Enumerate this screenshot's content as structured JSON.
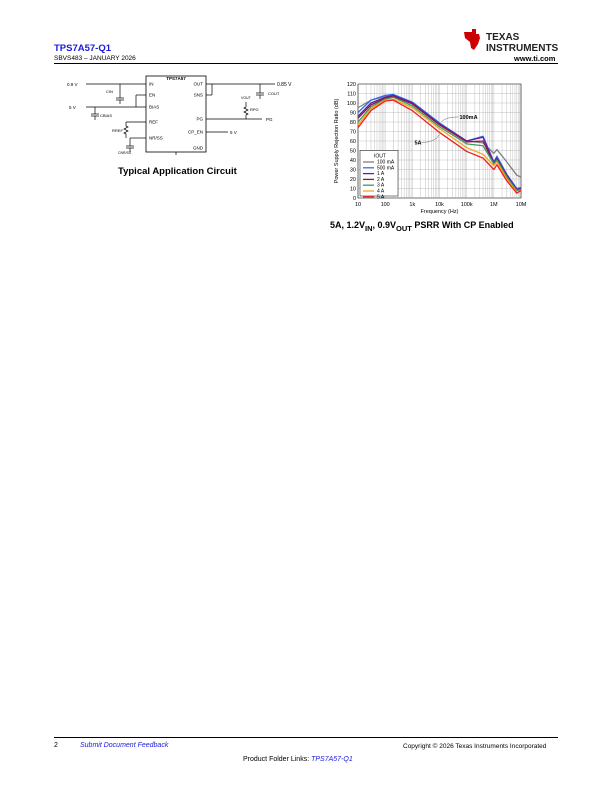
{
  "header": {
    "title": "TPS7A57-Q1",
    "doc_id": "SBVS483 – JANUARY 2026",
    "brand_line1": "TEXAS",
    "brand_line2": "INSTRUMENTS",
    "website": "www.ti.com",
    "brand_color": "#cc0000",
    "link_color": "#1a1adb"
  },
  "circuit": {
    "caption": "Typical Application Circuit",
    "ic_name": "TPS7A57",
    "pins_left": [
      "IN",
      "EN",
      "BIAS",
      "REF",
      "NR/SS"
    ],
    "pins_right": [
      "OUT",
      "SNS",
      "PG",
      "CP_EN",
      "GND"
    ],
    "labels": {
      "vin": "0.9 V",
      "bias": "5 V",
      "vout": "0.85 V",
      "cp_en": "5 V",
      "pg": "PG",
      "cin": "CIN",
      "cbias": "CBIAS",
      "rref": "RREF",
      "cnrss": "CNR/SS",
      "cout": "COUT",
      "vout_pull": "VOUT",
      "rpg": "RPG"
    }
  },
  "chart_data": {
    "type": "line",
    "caption_parts": [
      "5A, 1.2V",
      "IN",
      ", 0.9V",
      "OUT",
      " PSRR With CP Enabled"
    ],
    "xlabel": "Frequency (Hz)",
    "ylabel": "Power Supply Rejection Ratio (dB)",
    "xscale": "log",
    "xlim": [
      10,
      10000000
    ],
    "ylim": [
      0,
      120
    ],
    "grid": true,
    "xticks": [
      {
        "v": 10,
        "l": "10"
      },
      {
        "v": 100,
        "l": "100"
      },
      {
        "v": 1000,
        "l": "1k"
      },
      {
        "v": 10000,
        "l": "10k"
      },
      {
        "v": 100000,
        "l": "100k"
      },
      {
        "v": 1000000,
        "l": "1M"
      },
      {
        "v": 10000000,
        "l": "10M"
      }
    ],
    "yticks": [
      0,
      10,
      20,
      30,
      40,
      50,
      60,
      70,
      80,
      90,
      100,
      110,
      120
    ],
    "legend_title": "IOUT",
    "legend_placement": "bottom-left",
    "annotations": [
      {
        "text": "100mA",
        "x": 10000,
        "y": 78
      },
      {
        "text": "5A",
        "x": 10000,
        "y": 69
      }
    ],
    "x": [
      10,
      30,
      100,
      200,
      1000,
      10000,
      100000,
      400000,
      1000000,
      1300000,
      3000000,
      7000000,
      10000000
    ],
    "series": [
      {
        "name": "100 mA",
        "color": "#808080",
        "values": [
          95,
          103,
          107,
          108,
          100,
          78,
          60,
          58,
          47,
          51,
          38,
          24,
          22
        ]
      },
      {
        "name": "500 mA",
        "color": "#2e6ff5",
        "values": [
          90,
          103,
          108,
          109,
          101,
          79,
          60,
          65,
          38,
          44,
          25,
          10,
          11
        ]
      },
      {
        "name": "1 A",
        "color": "#6a1b9a",
        "values": [
          86,
          100,
          106,
          108,
          100,
          78,
          60,
          64,
          37,
          42,
          24,
          9,
          10
        ]
      },
      {
        "name": "2 A",
        "color": "#8b1a4a",
        "values": [
          84,
          98,
          105,
          107,
          99,
          77,
          59,
          60,
          36,
          41,
          22,
          8,
          9
        ]
      },
      {
        "name": "3 A",
        "color": "#3c9c5c",
        "values": [
          80,
          96,
          104,
          106,
          97,
          75,
          57,
          55,
          36,
          40,
          22,
          8,
          9
        ]
      },
      {
        "name": "4 A",
        "color": "#f5a623",
        "values": [
          77,
          94,
          103,
          104,
          95,
          73,
          53,
          46,
          34,
          38,
          20,
          6,
          8
        ]
      },
      {
        "name": "5 A",
        "color": "#f02020",
        "values": [
          74,
          92,
          102,
          103,
          92,
          69,
          49,
          42,
          30,
          35,
          18,
          5,
          8
        ]
      }
    ]
  },
  "footer": {
    "page": "2",
    "feedback": "Submit Document Feedback",
    "copyright": "Copyright © 2026 Texas Instruments Incorporated",
    "folder_label": "Product Folder Links: ",
    "folder_link": "TPS7A57-Q1"
  }
}
